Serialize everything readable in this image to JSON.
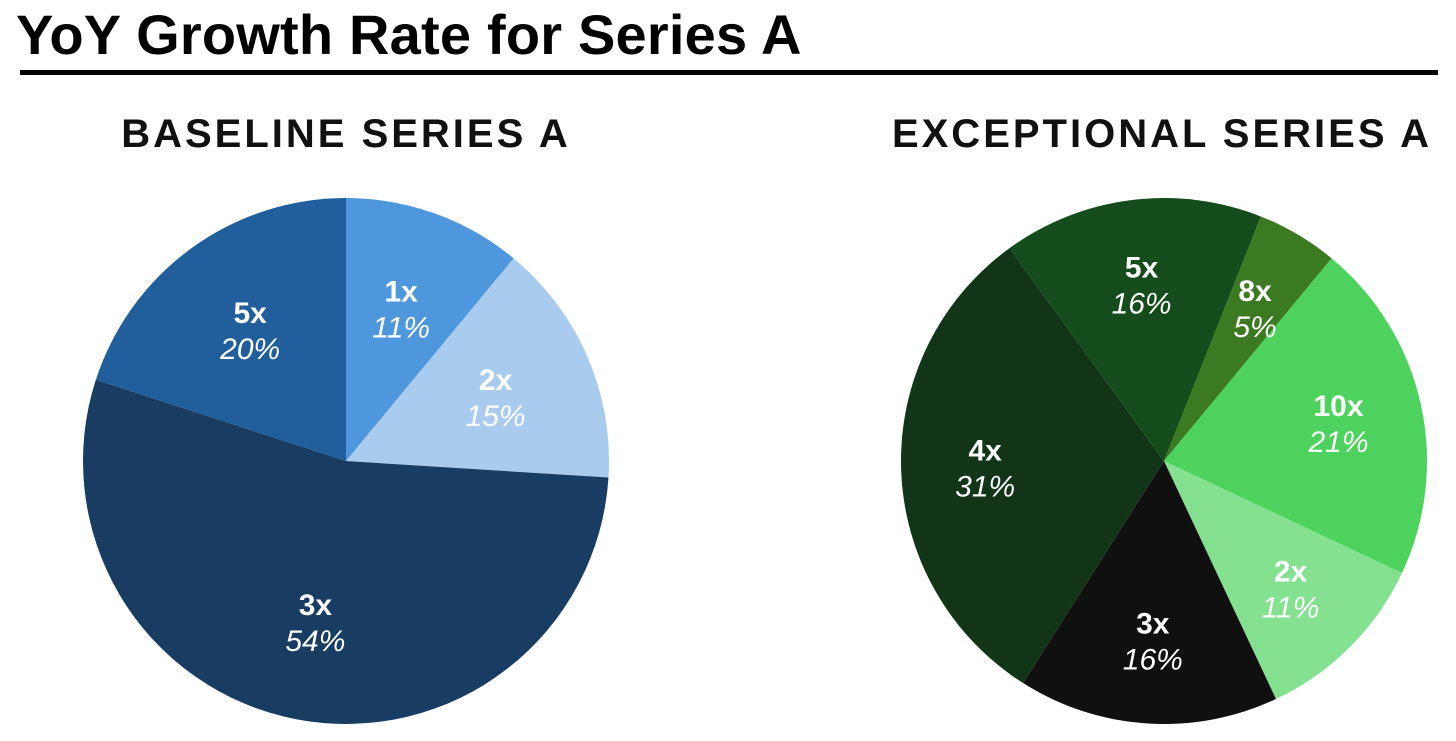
{
  "page": {
    "title": "YoY Growth Rate for Series A"
  },
  "chart_data": [
    {
      "type": "pie",
      "title": "BASELINE SERIES A",
      "slices": [
        {
          "label": "1x",
          "value": 11,
          "value_label": "11%",
          "color": "#4e97dd"
        },
        {
          "label": "2x",
          "value": 15,
          "value_label": "15%",
          "color": "#a8cbee"
        },
        {
          "label": "3x",
          "value": 54,
          "value_label": "54%",
          "color": "#193d62"
        },
        {
          "label": "5x",
          "value": 20,
          "value_label": "20%",
          "color": "#215f9c"
        }
      ]
    },
    {
      "type": "pie",
      "title": "EXCEPTIONAL SERIES A",
      "slices": [
        {
          "label": "8x",
          "value": 5,
          "value_label": "5%",
          "color": "#3c7a22"
        },
        {
          "label": "10x",
          "value": 21,
          "value_label": "21%",
          "color": "#4dd35d"
        },
        {
          "label": "2x",
          "value": 11,
          "value_label": "11%",
          "color": "#84e18f"
        },
        {
          "label": "3x",
          "value": 16,
          "value_label": "16%",
          "color": "#101010"
        },
        {
          "label": "4x",
          "value": 31,
          "value_label": "31%",
          "color": "#113516"
        },
        {
          "label": "5x",
          "value": 16,
          "value_label": "16%",
          "color": "#144c1b"
        }
      ]
    }
  ]
}
